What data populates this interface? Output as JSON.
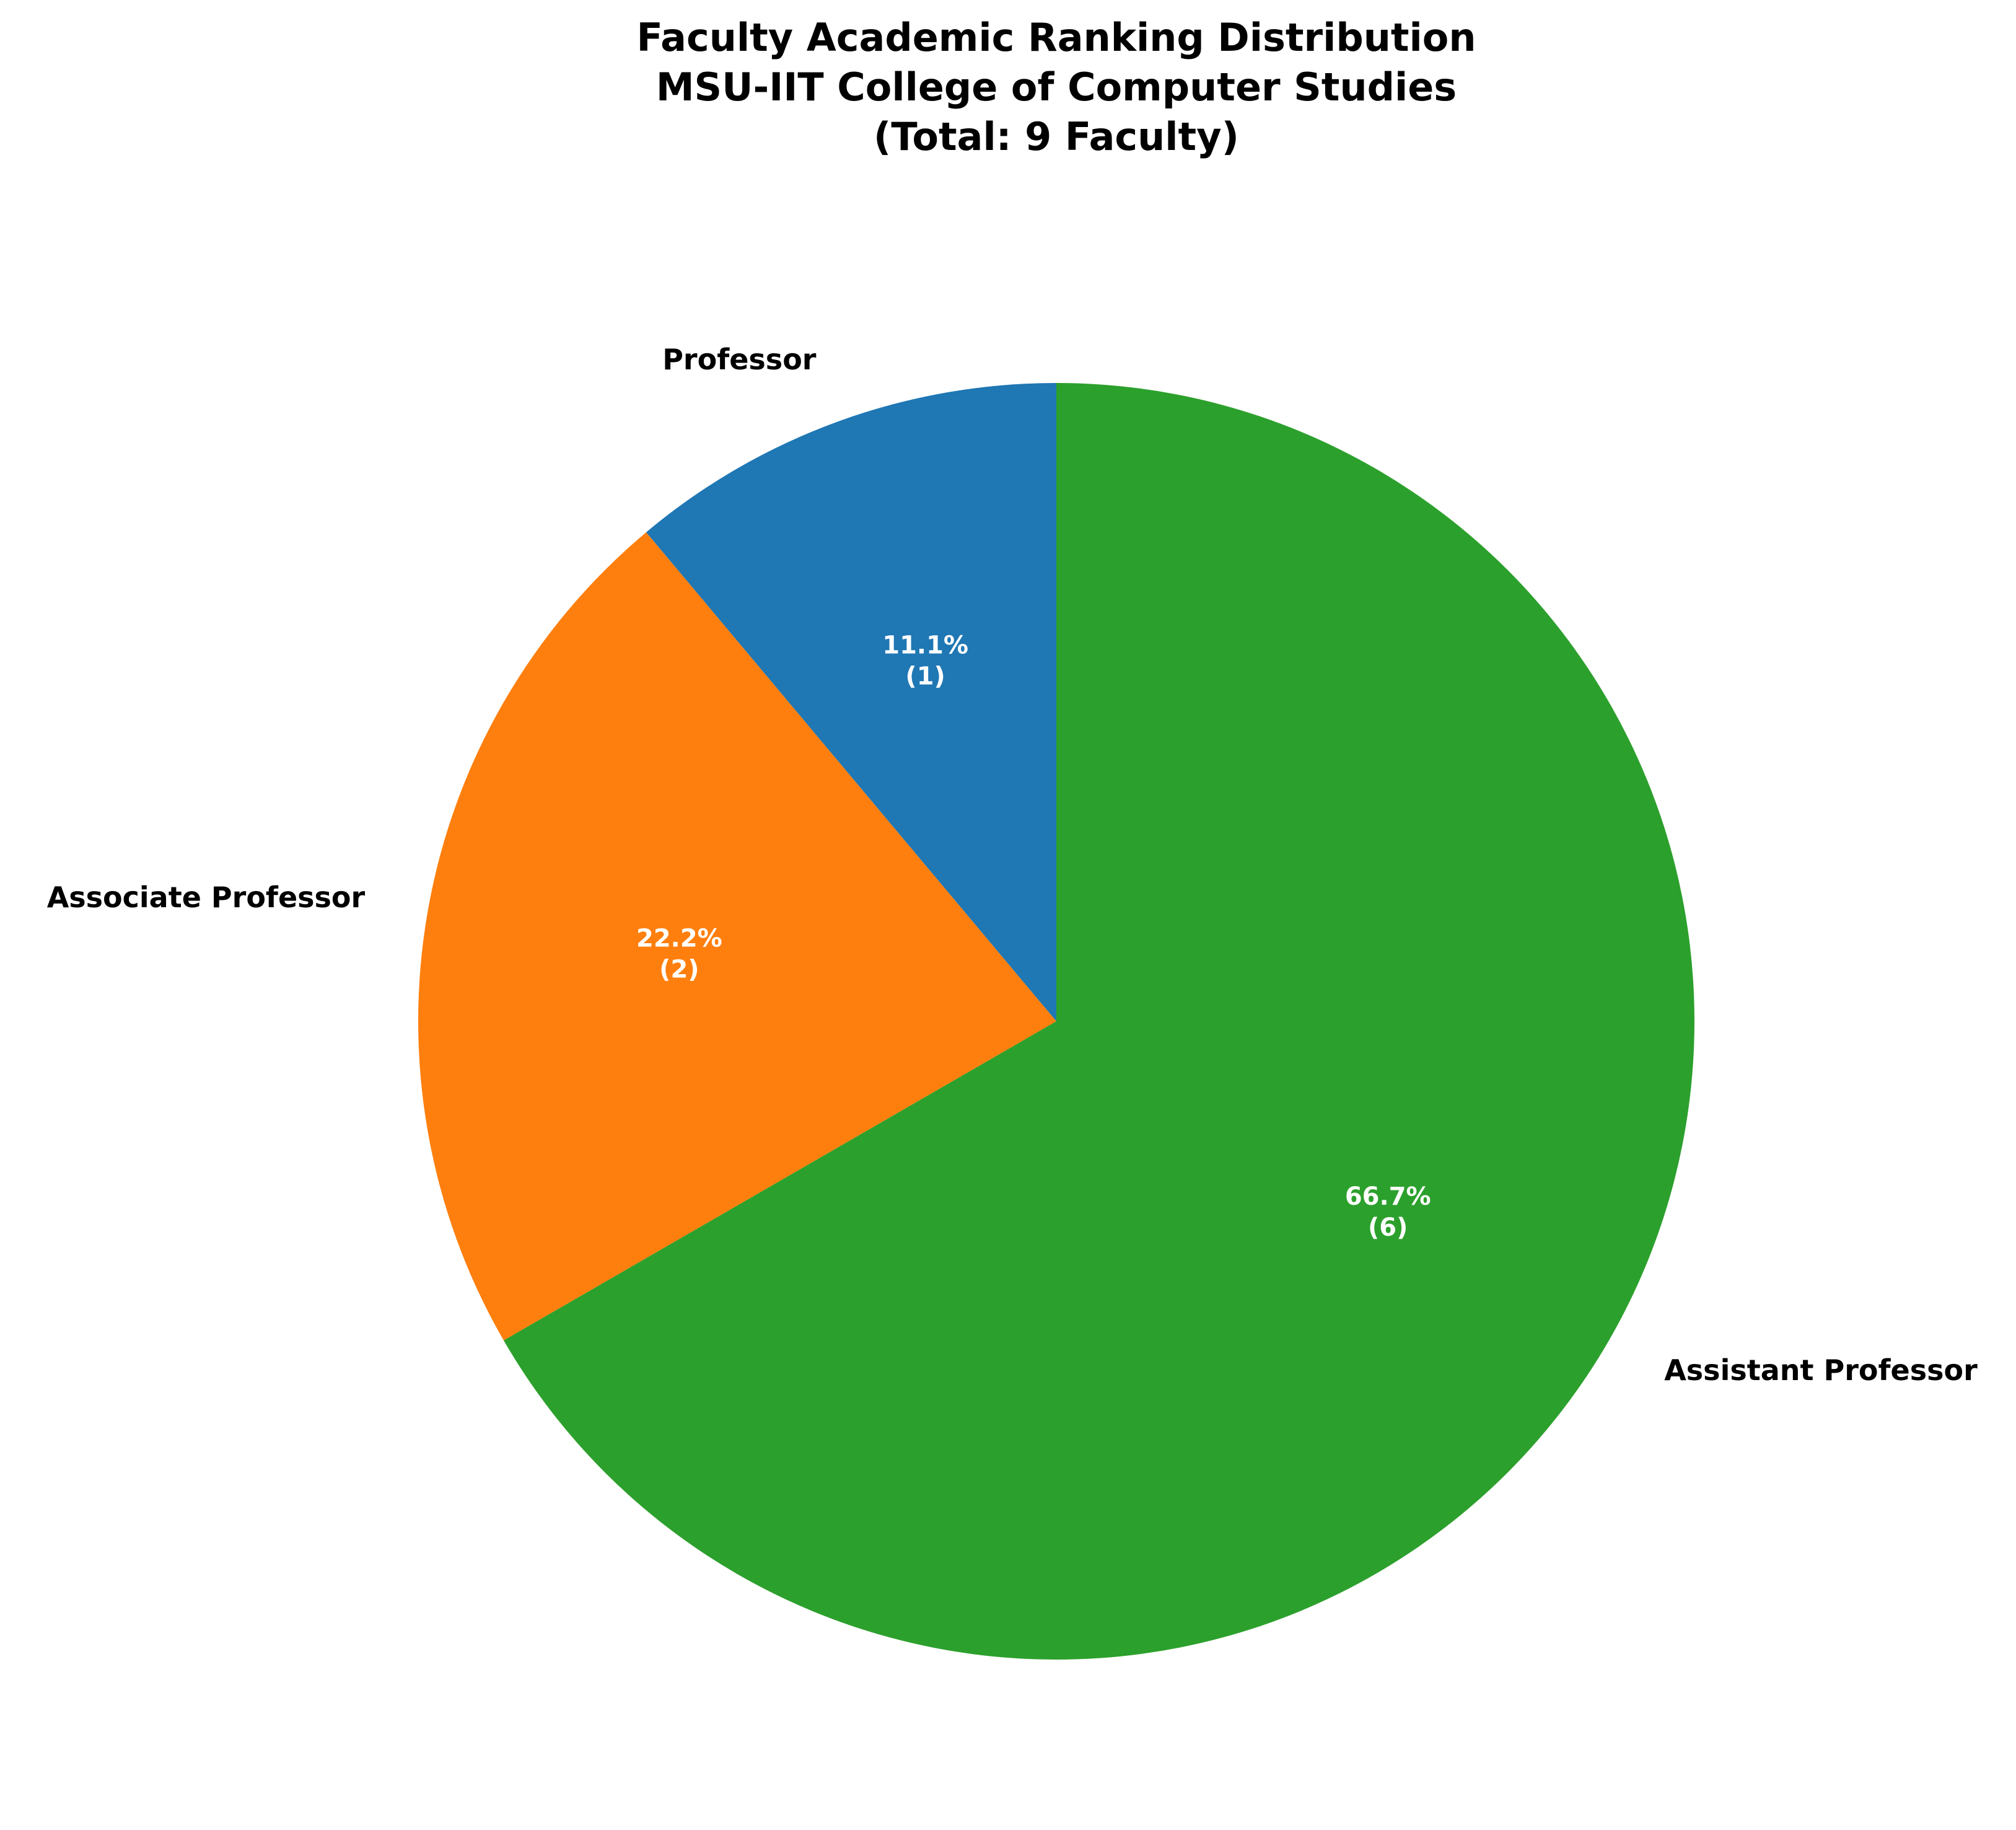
{
  "chart_data": {
    "type": "pie",
    "title_lines": [
      "Faculty Academic Ranking Distribution",
      "MSU-IIT College of Computer Studies",
      "(Total: 9 Faculty)"
    ],
    "categories": [
      "Professor",
      "Associate Professor",
      "Assistant Professor"
    ],
    "values": [
      1,
      2,
      6
    ],
    "percent_labels": [
      "11.1%",
      "22.2%",
      "66.7%"
    ],
    "count_labels": [
      "(1)",
      "(2)",
      "(6)"
    ],
    "colors": [
      "#1f77b4",
      "#ff7f0e",
      "#2ca02c"
    ],
    "start_angle_deg": 90,
    "direction": "counterclockwise",
    "legend": "none"
  }
}
